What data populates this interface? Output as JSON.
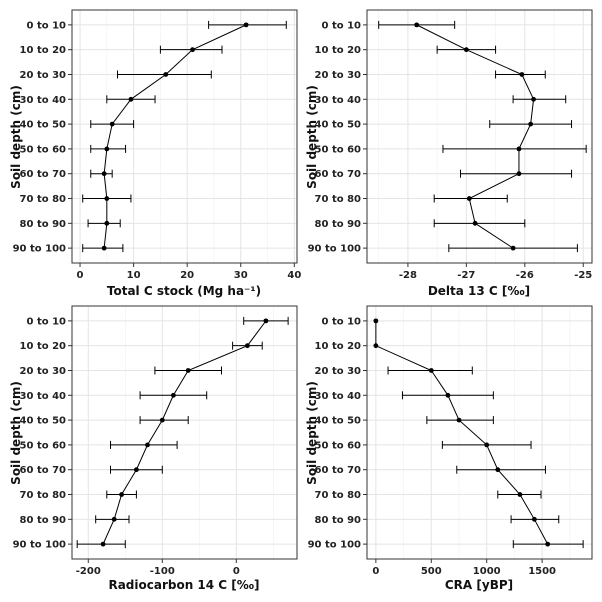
{
  "figure": {
    "background": "#ffffff"
  },
  "chart_data": [
    {
      "type": "scatter",
      "title": "",
      "xlabel": "Total C stock (Mg ha⁻¹)",
      "ylabel": "Soil depth (cm)",
      "categories": [
        "0 to 10",
        "10 to 20",
        "20 to 30",
        "30 to 40",
        "40 to 50",
        "50 to 60",
        "60 to 70",
        "70 to 80",
        "80 to 90",
        "90 to 100"
      ],
      "x": [
        31,
        21,
        16,
        9.5,
        6,
        5,
        4.5,
        5,
        5,
        4.5
      ],
      "xerr_low": [
        24,
        15,
        7,
        5,
        2,
        2,
        2,
        0.5,
        1.5,
        0.5
      ],
      "xerr_high": [
        38.5,
        26.5,
        24.5,
        14,
        10,
        8.5,
        6,
        9.5,
        7.5,
        8
      ],
      "xlim": [
        -1.5,
        40.5
      ],
      "xticks": [
        0,
        10,
        20,
        30,
        40
      ],
      "xtick_labels": [
        "0",
        "10",
        "20",
        "30",
        "40"
      ],
      "grid": true
    },
    {
      "type": "scatter",
      "title": "",
      "xlabel": "Delta 13 C [‰]",
      "ylabel": "Soil depth (cm)",
      "categories": [
        "0 to 10",
        "10 to 20",
        "20 to 30",
        "30 to 40",
        "40 to 50",
        "50 to 60",
        "60 to 70",
        "70 to 80",
        "80 to 90",
        "90 to 100"
      ],
      "x": [
        -27.85,
        -27.0,
        -26.05,
        -25.85,
        -25.9,
        -26.1,
        -26.1,
        -26.95,
        -26.85,
        -26.2
      ],
      "xerr_low": [
        -28.5,
        -27.5,
        -26.5,
        -26.2,
        -26.6,
        -27.4,
        -27.1,
        -27.55,
        -27.55,
        -27.3
      ],
      "xerr_high": [
        -27.2,
        -26.5,
        -25.65,
        -25.3,
        -25.2,
        -24.95,
        -25.2,
        -26.3,
        -26.0,
        -25.1
      ],
      "xlim": [
        -28.7,
        -24.85
      ],
      "xticks": [
        -28,
        -27,
        -26,
        -25
      ],
      "xtick_labels": [
        "-28",
        "-27",
        "-26",
        "-25"
      ],
      "grid": true
    },
    {
      "type": "scatter",
      "title": "",
      "xlabel": "Radiocarbon 14 C [‰]",
      "ylabel": "Soil depth (cm)",
      "categories": [
        "0 to 10",
        "10 to 20",
        "20 to 30",
        "30 to 40",
        "40 to 50",
        "50 to 60",
        "60 to 70",
        "70 to 80",
        "80 to 90",
        "90 to 100"
      ],
      "x": [
        40,
        15,
        -65,
        -85,
        -100,
        -120,
        -135,
        -155,
        -165,
        -180
      ],
      "xerr_low": [
        10,
        -5,
        -110,
        -130,
        -130,
        -170,
        -170,
        -175,
        -190,
        -215
      ],
      "xerr_high": [
        70,
        35,
        -20,
        -40,
        -65,
        -80,
        -100,
        -135,
        -145,
        -150
      ],
      "xlim": [
        -222,
        82
      ],
      "xticks": [
        -200,
        -100,
        0
      ],
      "xtick_labels": [
        "-200",
        "-100",
        "0"
      ],
      "grid": true
    },
    {
      "type": "scatter",
      "title": "",
      "xlabel": "CRA [yBP]",
      "ylabel": "Soil depth (cm)",
      "categories": [
        "0 to 10",
        "10 to 20",
        "20 to 30",
        "30 to 40",
        "40 to 50",
        "50 to 60",
        "60 to 70",
        "70 to 80",
        "80 to 90",
        "90 to 100"
      ],
      "x": [
        0,
        0,
        500,
        650,
        750,
        1000,
        1100,
        1300,
        1430,
        1550
      ],
      "xerr_low": [
        null,
        null,
        110,
        240,
        460,
        600,
        730,
        1100,
        1220,
        1240
      ],
      "xerr_high": [
        null,
        null,
        870,
        1060,
        1060,
        1400,
        1530,
        1490,
        1650,
        1870
      ],
      "xlim": [
        -80,
        1950
      ],
      "xticks": [
        0,
        500,
        1000,
        1500
      ],
      "xtick_labels": [
        "0",
        "500",
        "1000",
        "1500"
      ],
      "grid": true
    }
  ]
}
